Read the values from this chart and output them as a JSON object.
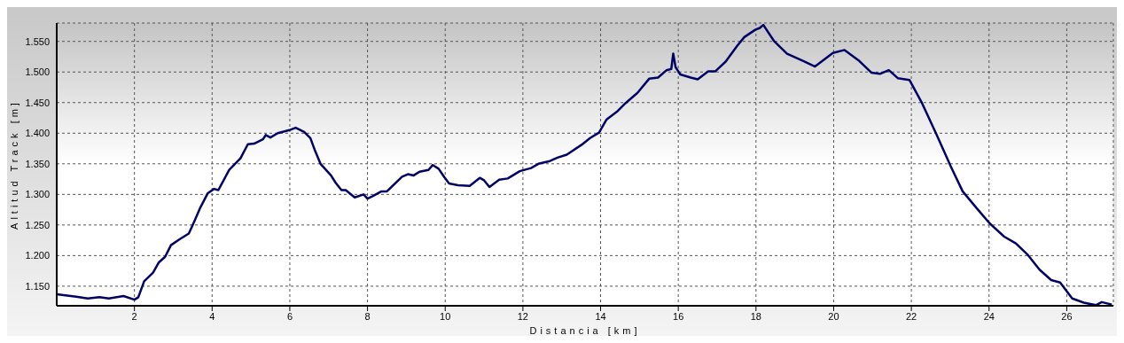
{
  "chart_data": {
    "type": "line",
    "xlabel": "Distancia [km]",
    "ylabel": "Altitud Track [m]",
    "x": [
      0,
      0.5,
      0.8,
      1.1,
      1.34,
      1.72,
      2.0,
      2.1,
      2.25,
      2.48,
      2.63,
      2.79,
      2.94,
      3.17,
      3.4,
      3.55,
      3.7,
      3.89,
      4.05,
      4.16,
      4.44,
      4.73,
      4.92,
      5.08,
      5.31,
      5.38,
      5.5,
      5.69,
      5.99,
      6.15,
      6.37,
      6.53,
      6.64,
      6.79,
      7.06,
      7.18,
      7.33,
      7.44,
      7.67,
      7.9,
      8.0,
      8.13,
      8.36,
      8.5,
      8.89,
      9.04,
      9.19,
      9.34,
      9.57,
      9.68,
      9.83,
      9.98,
      10.1,
      10.33,
      10.63,
      10.89,
      11.0,
      11.14,
      11.39,
      11.61,
      11.92,
      12.21,
      12.4,
      12.67,
      12.89,
      13.13,
      13.51,
      13.73,
      13.96,
      14.15,
      14.42,
      14.64,
      14.95,
      15.25,
      15.48,
      15.7,
      15.82,
      15.87,
      15.93,
      16.05,
      16.32,
      16.5,
      16.77,
      16.95,
      17.22,
      17.52,
      17.7,
      17.98,
      18.1,
      18.19,
      18.46,
      18.8,
      19.22,
      19.52,
      19.98,
      20.28,
      20.66,
      20.97,
      21.19,
      21.42,
      21.65,
      21.95,
      22.26,
      22.64,
      23.02,
      23.32,
      23.7,
      24.01,
      24.39,
      24.69,
      25.0,
      25.3,
      25.6,
      25.83,
      26.14,
      26.44,
      26.75,
      26.9,
      27.16
    ],
    "series": [
      {
        "color": "#000066",
        "values": [
          1137,
          1133,
          1130,
          1132,
          1130,
          1134,
          1128,
          1132,
          1158,
          1172,
          1189,
          1198,
          1217,
          1227,
          1236,
          1257,
          1279,
          1302,
          1309,
          1307,
          1340,
          1359,
          1382,
          1383,
          1390,
          1397,
          1393,
          1400,
          1405,
          1409,
          1402,
          1392,
          1373,
          1350,
          1331,
          1319,
          1307,
          1307,
          1295,
          1300,
          1293,
          1297,
          1305,
          1305,
          1329,
          1333,
          1331,
          1337,
          1340,
          1348,
          1342,
          1328,
          1318,
          1315,
          1314,
          1327,
          1323,
          1312,
          1324,
          1326,
          1338,
          1343,
          1350,
          1354,
          1360,
          1365,
          1381,
          1392,
          1401,
          1422,
          1435,
          1449,
          1466,
          1489,
          1491,
          1503,
          1505,
          1530,
          1508,
          1496,
          1491,
          1488,
          1501,
          1501,
          1517,
          1543,
          1557,
          1569,
          1572,
          1577,
          1551,
          1530,
          1518,
          1509,
          1531,
          1536,
          1518,
          1499,
          1497,
          1503,
          1490,
          1487,
          1451,
          1399,
          1345,
          1305,
          1276,
          1253,
          1231,
          1220,
          1201,
          1177,
          1160,
          1156,
          1130,
          1123,
          1119,
          1124,
          1120
        ]
      }
    ],
    "xlim": [
      0,
      27.2
    ],
    "xticks": [
      2,
      4,
      6,
      8,
      10,
      12,
      14,
      16,
      18,
      20,
      22,
      24,
      26
    ],
    "ylim": [
      1118,
      1580
    ],
    "yticks": [
      {
        "value": 1150,
        "label": "1.150"
      },
      {
        "value": 1200,
        "label": "1.200"
      },
      {
        "value": 1250,
        "label": "1.250"
      },
      {
        "value": 1300,
        "label": "1.300"
      },
      {
        "value": 1350,
        "label": "1.350"
      },
      {
        "value": 1400,
        "label": "1.400"
      },
      {
        "value": 1450,
        "label": "1.450"
      },
      {
        "value": 1500,
        "label": "1.500"
      },
      {
        "value": 1550,
        "label": "1.550"
      }
    ],
    "grid": true,
    "legend": false,
    "marker": "none",
    "line_style": "solid"
  }
}
